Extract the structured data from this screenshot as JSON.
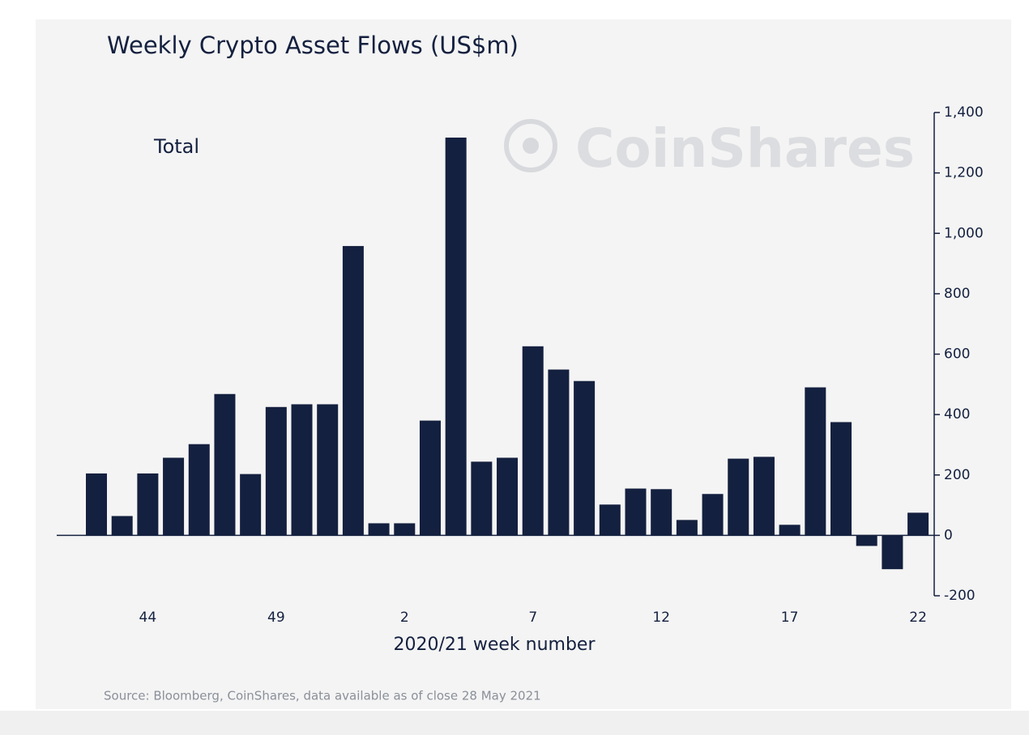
{
  "chart_data": {
    "type": "bar",
    "title": "Weekly Crypto Asset Flows (US$m)",
    "subtitle": "Total",
    "watermark": "CoinShares",
    "xlabel": "2020/21 week number",
    "source": "Source: Bloomberg, CoinShares, data available as of close 28 May 2021",
    "categories": [
      null,
      null,
      "44",
      null,
      null,
      null,
      null,
      "49",
      null,
      null,
      null,
      null,
      "2",
      null,
      null,
      null,
      null,
      "7",
      null,
      null,
      null,
      null,
      "12",
      null,
      null,
      null,
      null,
      "17",
      null,
      null,
      null,
      null,
      "22"
    ],
    "values": [
      205,
      64,
      205,
      257,
      302,
      468,
      203,
      425,
      434,
      434,
      958,
      40,
      40,
      380,
      1317,
      244,
      257,
      626,
      549,
      511,
      102,
      155,
      153,
      51,
      137,
      254,
      260,
      35,
      490,
      375,
      -35,
      -112,
      75
    ],
    "color": "#14203f",
    "ylim": [
      -200,
      1400
    ],
    "yticks": [
      {
        "value": -200,
        "label": "-200"
      },
      0,
      200,
      400,
      600,
      800,
      {
        "value": 1000,
        "label": "1,000"
      },
      {
        "value": 1200,
        "label": "1,200"
      },
      {
        "value": 1400,
        "label": "1,400"
      }
    ],
    "y_axis_side": "right",
    "grid": false
  }
}
